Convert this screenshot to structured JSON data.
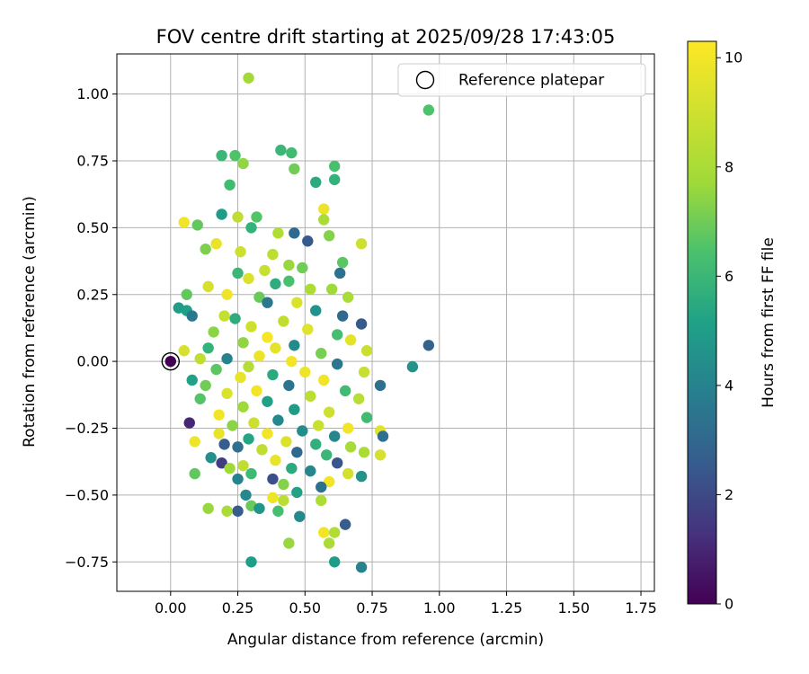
{
  "chart_data": {
    "type": "scatter",
    "title": "FOV centre drift starting at 2025/09/28 17:43:05",
    "xlabel": "Angular distance from reference (arcmin)",
    "ylabel": "Rotation from reference (arcmin)",
    "xlim": [
      -0.2,
      1.8
    ],
    "ylim": [
      -0.86,
      1.15
    ],
    "xticks": [
      0.0,
      0.25,
      0.5,
      0.75,
      1.0,
      1.25,
      1.5,
      1.75
    ],
    "xtick_labels": [
      "0.00",
      "0.25",
      "0.50",
      "0.75",
      "1.00",
      "1.25",
      "1.50",
      "1.75"
    ],
    "yticks": [
      -0.75,
      -0.5,
      -0.25,
      0.0,
      0.25,
      0.5,
      0.75,
      1.0
    ],
    "ytick_labels": [
      "−0.75",
      "−0.50",
      "−0.25",
      "0.00",
      "0.25",
      "0.50",
      "0.75",
      "1.00"
    ],
    "grid": true,
    "legend": {
      "position": "top-right",
      "entries": [
        "Reference platepar"
      ]
    },
    "reference_point": {
      "x": 0.0,
      "y": 0.0,
      "hours": 0.0
    },
    "colorbar": {
      "label": "Hours from first FF file",
      "colormap": "viridis",
      "range": [
        0,
        10.3
      ],
      "ticks": [
        0,
        2,
        4,
        6,
        8,
        10
      ],
      "tick_labels": [
        "0",
        "2",
        "4",
        "6",
        "8",
        "10"
      ]
    },
    "points": [
      [
        0.29,
        1.06,
        7.8
      ],
      [
        0.96,
        0.94,
        6.5
      ],
      [
        0.41,
        0.79,
        6.0
      ],
      [
        0.45,
        0.78,
        6.2
      ],
      [
        0.19,
        0.77,
        6.0
      ],
      [
        0.24,
        0.77,
        6.5
      ],
      [
        0.27,
        0.74,
        7.5
      ],
      [
        0.46,
        0.72,
        7.0
      ],
      [
        0.61,
        0.73,
        6.4
      ],
      [
        0.61,
        0.68,
        5.8
      ],
      [
        0.54,
        0.67,
        5.5
      ],
      [
        0.22,
        0.66,
        6.2
      ],
      [
        0.57,
        0.57,
        9.8
      ],
      [
        0.32,
        0.54,
        6.6
      ],
      [
        0.19,
        0.55,
        5.0
      ],
      [
        0.25,
        0.54,
        8.6
      ],
      [
        0.05,
        0.52,
        10.0
      ],
      [
        0.57,
        0.53,
        8.0
      ],
      [
        0.1,
        0.51,
        6.8
      ],
      [
        0.3,
        0.5,
        5.8
      ],
      [
        0.46,
        0.48,
        3.0
      ],
      [
        0.51,
        0.45,
        2.5
      ],
      [
        0.4,
        0.48,
        8.2
      ],
      [
        0.59,
        0.47,
        7.3
      ],
      [
        0.71,
        0.44,
        9.0
      ],
      [
        0.17,
        0.44,
        9.7
      ],
      [
        0.13,
        0.42,
        7.2
      ],
      [
        0.26,
        0.41,
        9.0
      ],
      [
        0.38,
        0.4,
        8.5
      ],
      [
        0.64,
        0.37,
        6.7
      ],
      [
        0.44,
        0.36,
        7.6
      ],
      [
        0.49,
        0.35,
        7.0
      ],
      [
        0.35,
        0.34,
        8.8
      ],
      [
        0.25,
        0.33,
        6.0
      ],
      [
        0.63,
        0.33,
        3.4
      ],
      [
        0.29,
        0.31,
        9.4
      ],
      [
        0.44,
        0.3,
        6.4
      ],
      [
        0.39,
        0.29,
        5.6
      ],
      [
        0.52,
        0.27,
        8.1
      ],
      [
        0.14,
        0.28,
        9.2
      ],
      [
        0.6,
        0.27,
        7.7
      ],
      [
        0.66,
        0.24,
        8.0
      ],
      [
        0.21,
        0.25,
        9.9
      ],
      [
        0.33,
        0.24,
        6.9
      ],
      [
        0.06,
        0.25,
        6.8
      ],
      [
        0.47,
        0.22,
        9.3
      ],
      [
        0.36,
        0.22,
        3.6
      ],
      [
        0.03,
        0.2,
        5.0
      ],
      [
        0.06,
        0.19,
        5.1
      ],
      [
        0.54,
        0.19,
        4.6
      ],
      [
        0.08,
        0.17,
        3.6
      ],
      [
        0.64,
        0.17,
        3.1
      ],
      [
        0.2,
        0.17,
        8.7
      ],
      [
        0.24,
        0.16,
        5.6
      ],
      [
        0.42,
        0.15,
        8.6
      ],
      [
        0.71,
        0.14,
        2.5
      ],
      [
        0.3,
        0.13,
        9.0
      ],
      [
        0.51,
        0.12,
        9.5
      ],
      [
        0.62,
        0.1,
        6.3
      ],
      [
        0.16,
        0.11,
        7.4
      ],
      [
        0.36,
        0.09,
        10.1
      ],
      [
        0.67,
        0.08,
        9.6
      ],
      [
        0.27,
        0.07,
        7.5
      ],
      [
        0.46,
        0.06,
        4.3
      ],
      [
        0.96,
        0.06,
        2.8
      ],
      [
        0.14,
        0.05,
        5.8
      ],
      [
        0.39,
        0.05,
        9.6
      ],
      [
        0.05,
        0.04,
        9.2
      ],
      [
        0.73,
        0.04,
        8.9
      ],
      [
        0.56,
        0.03,
        7.1
      ],
      [
        0.33,
        0.02,
        9.8
      ],
      [
        0.21,
        0.01,
        4.0
      ],
      [
        0.11,
        0.01,
        8.6
      ],
      [
        0.45,
        0.0,
        10.0
      ],
      [
        0.62,
        -0.01,
        3.5
      ],
      [
        0.29,
        -0.02,
        8.3
      ],
      [
        0.9,
        -0.02,
        4.6
      ],
      [
        0.17,
        -0.03,
        6.7
      ],
      [
        0.5,
        -0.04,
        9.9
      ],
      [
        0.72,
        -0.04,
        8.8
      ],
      [
        0.38,
        -0.05,
        5.5
      ],
      [
        0.26,
        -0.06,
        9.7
      ],
      [
        0.08,
        -0.07,
        5.2
      ],
      [
        0.57,
        -0.07,
        10.0
      ],
      [
        0.13,
        -0.09,
        7.0
      ],
      [
        0.44,
        -0.09,
        3.5
      ],
      [
        0.78,
        -0.09,
        3.3
      ],
      [
        0.32,
        -0.11,
        10.0
      ],
      [
        0.65,
        -0.11,
        6.2
      ],
      [
        0.21,
        -0.12,
        9.3
      ],
      [
        0.52,
        -0.13,
        8.5
      ],
      [
        0.11,
        -0.14,
        6.6
      ],
      [
        0.36,
        -0.15,
        5.1
      ],
      [
        0.7,
        -0.14,
        8.4
      ],
      [
        0.27,
        -0.17,
        7.7
      ],
      [
        0.46,
        -0.18,
        4.9
      ],
      [
        0.59,
        -0.19,
        9.0
      ],
      [
        0.18,
        -0.2,
        10.0
      ],
      [
        0.73,
        -0.21,
        6.2
      ],
      [
        0.4,
        -0.22,
        4.2
      ],
      [
        0.31,
        -0.23,
        9.0
      ],
      [
        0.07,
        -0.23,
        1.0
      ],
      [
        0.55,
        -0.24,
        8.9
      ],
      [
        0.23,
        -0.24,
        7.4
      ],
      [
        0.66,
        -0.25,
        10.0
      ],
      [
        0.49,
        -0.26,
        4.4
      ],
      [
        0.36,
        -0.27,
        10.0
      ],
      [
        0.78,
        -0.26,
        9.5
      ],
      [
        0.18,
        -0.27,
        9.7
      ],
      [
        0.61,
        -0.28,
        4.1
      ],
      [
        0.29,
        -0.29,
        5.3
      ],
      [
        0.79,
        -0.28,
        3.3
      ],
      [
        0.43,
        -0.3,
        9.4
      ],
      [
        0.54,
        -0.31,
        5.7
      ],
      [
        0.09,
        -0.3,
        9.9
      ],
      [
        0.2,
        -0.31,
        2.6
      ],
      [
        0.25,
        -0.32,
        3.3
      ],
      [
        0.67,
        -0.32,
        7.9
      ],
      [
        0.34,
        -0.33,
        8.6
      ],
      [
        0.47,
        -0.34,
        3.0
      ],
      [
        0.58,
        -0.35,
        6.0
      ],
      [
        0.72,
        -0.34,
        8.0
      ],
      [
        0.15,
        -0.36,
        4.5
      ],
      [
        0.39,
        -0.37,
        9.7
      ],
      [
        0.78,
        -0.35,
        9.2
      ],
      [
        0.62,
        -0.38,
        2.4
      ],
      [
        0.19,
        -0.38,
        1.6
      ],
      [
        0.27,
        -0.39,
        8.6
      ],
      [
        0.45,
        -0.4,
        5.5
      ],
      [
        0.22,
        -0.4,
        7.7
      ],
      [
        0.52,
        -0.41,
        4.1
      ],
      [
        0.66,
        -0.42,
        9.1
      ],
      [
        0.3,
        -0.42,
        6.1
      ],
      [
        0.09,
        -0.42,
        6.8
      ],
      [
        0.71,
        -0.43,
        4.6
      ],
      [
        0.38,
        -0.44,
        2.2
      ],
      [
        0.25,
        -0.44,
        4.0
      ],
      [
        0.59,
        -0.45,
        10.0
      ],
      [
        0.42,
        -0.46,
        7.3
      ],
      [
        0.56,
        -0.47,
        3.4
      ],
      [
        0.28,
        -0.5,
        4.2
      ],
      [
        0.47,
        -0.49,
        5.2
      ],
      [
        0.38,
        -0.51,
        9.9
      ],
      [
        0.42,
        -0.52,
        8.5
      ],
      [
        0.56,
        -0.52,
        8.1
      ],
      [
        0.3,
        -0.54,
        6.9
      ],
      [
        0.33,
        -0.55,
        4.7
      ],
      [
        0.14,
        -0.55,
        7.6
      ],
      [
        0.25,
        -0.56,
        2.6
      ],
      [
        0.4,
        -0.56,
        6.3
      ],
      [
        0.21,
        -0.56,
        8.0
      ],
      [
        0.48,
        -0.58,
        4.2
      ],
      [
        0.65,
        -0.61,
        2.6
      ],
      [
        0.57,
        -0.64,
        10.0
      ],
      [
        0.61,
        -0.64,
        8.2
      ],
      [
        0.59,
        -0.68,
        8.0
      ],
      [
        0.44,
        -0.68,
        7.6
      ],
      [
        0.3,
        -0.75,
        5.0
      ],
      [
        0.61,
        -0.75,
        5.0
      ],
      [
        0.71,
        -0.77,
        4.0
      ]
    ]
  }
}
